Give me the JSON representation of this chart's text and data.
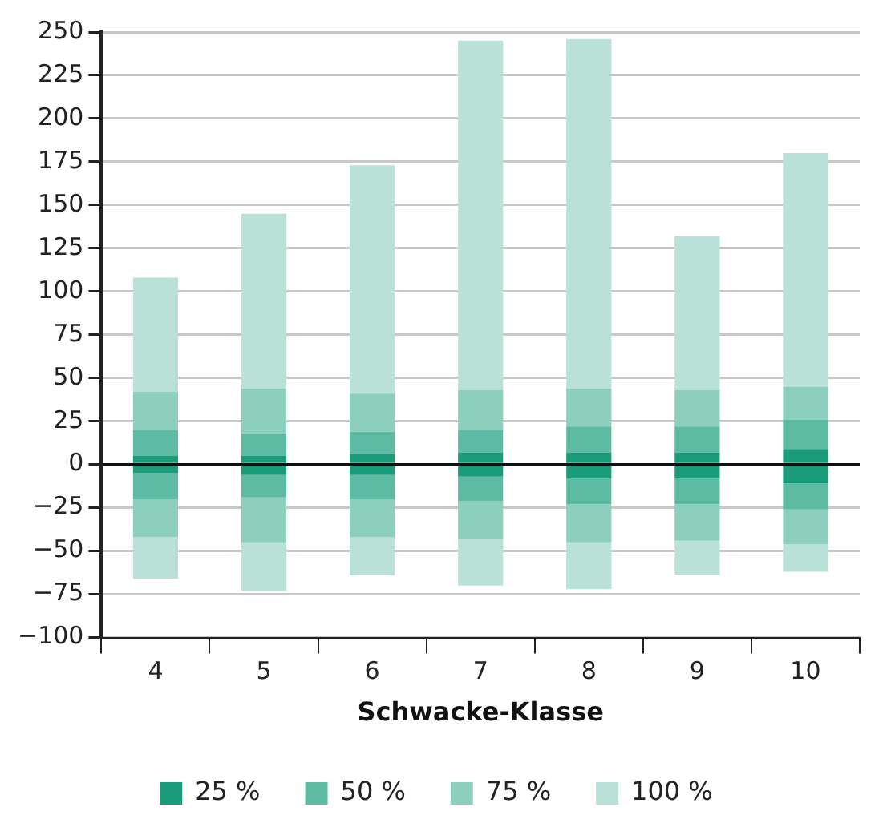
{
  "chart_data": {
    "type": "bar",
    "xlabel": "Schwacke-Klasse",
    "categories": [
      "4",
      "5",
      "6",
      "7",
      "8",
      "9",
      "10"
    ],
    "stacked": true,
    "grid": "y",
    "legend": "bottom",
    "ylim": [
      -100,
      250
    ],
    "yticks": [
      -100,
      -75,
      -50,
      -25,
      0,
      25,
      50,
      75,
      100,
      125,
      150,
      175,
      200,
      225,
      250
    ],
    "series": [
      {
        "name": "25 %",
        "color": "#1a9c7b",
        "values": [
          5,
          5,
          6,
          7,
          7,
          7,
          9
        ]
      },
      {
        "name": "50 %",
        "color": "#5dbba3",
        "values": [
          15,
          13,
          13,
          13,
          15,
          15,
          17
        ]
      },
      {
        "name": "75 %",
        "color": "#8dcfbd",
        "values": [
          22,
          26,
          22,
          23,
          22,
          21,
          19
        ]
      },
      {
        "name": "100 %",
        "color": "#b9e1d7",
        "values": [
          66,
          101,
          132,
          202,
          202,
          89,
          135
        ]
      },
      {
        "color": "#1a9c7b",
        "values": [
          -5,
          -6,
          -6,
          -7,
          -8,
          -8,
          -11
        ]
      },
      {
        "color": "#5dbba3",
        "values": [
          -15,
          -13,
          -14,
          -14,
          -15,
          -15,
          -15
        ]
      },
      {
        "color": "#8dcfbd",
        "values": [
          -22,
          -26,
          -22,
          -22,
          -22,
          -21,
          -20
        ]
      },
      {
        "color": "#b9e1d7",
        "values": [
          -24,
          -28,
          -22,
          -27,
          -27,
          -20,
          -16
        ]
      }
    ]
  }
}
